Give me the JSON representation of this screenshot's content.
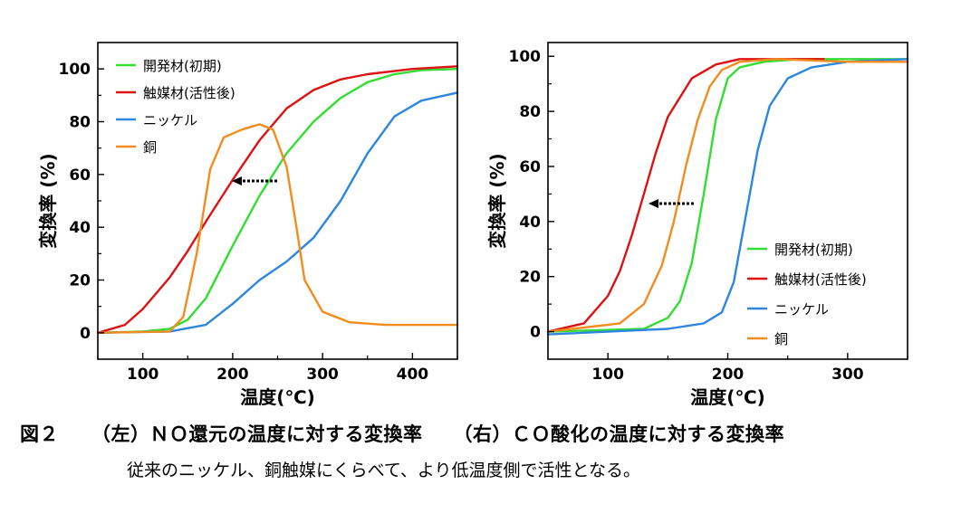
{
  "colors": {
    "kaihatsu": "#33dd33",
    "shokubai": "#dd1111",
    "nickel": "#2e86de",
    "copper": "#f28c1e",
    "axis": "#000000"
  },
  "caption": {
    "figure_number": "図２",
    "left_title": "（左）ＮＯ還元の温度に対する変換率",
    "right_title": "（右）ＣＯ酸化の温度に対する変換率",
    "body": "従来のニッケル、銅触媒にくらべて、より低温度側で活性となる。"
  },
  "chart_data": [
    {
      "type": "line",
      "xlabel": "温度(℃)",
      "ylabel": "変換率 (%)",
      "xlim": [
        50,
        450
      ],
      "ylim": [
        -10,
        110
      ],
      "xticks": [
        100,
        200,
        300,
        400
      ],
      "yticks": [
        0,
        20,
        40,
        60,
        80,
        100
      ],
      "legend_position": "top-left",
      "annotation": "arrow pointing left",
      "series": [
        {
          "name": "開発材(初期)",
          "color_key": "kaihatsu",
          "x": [
            50,
            100,
            130,
            150,
            170,
            200,
            230,
            260,
            290,
            320,
            350,
            380,
            410,
            450
          ],
          "y": [
            0,
            0.5,
            1.5,
            5,
            13,
            33,
            52,
            68,
            80,
            89,
            95,
            98,
            99.5,
            100
          ]
        },
        {
          "name": "触媒材(活性後)",
          "color_key": "shokubai",
          "x": [
            50,
            80,
            100,
            130,
            150,
            170,
            200,
            230,
            260,
            290,
            320,
            350,
            400,
            450
          ],
          "y": [
            0,
            3,
            9,
            21,
            31,
            42,
            58,
            73,
            85,
            92,
            96,
            98,
            100,
            101
          ]
        },
        {
          "name": "ニッケル",
          "color_key": "nickel",
          "x": [
            50,
            130,
            170,
            200,
            230,
            260,
            290,
            320,
            350,
            380,
            410,
            450
          ],
          "y": [
            0,
            0.5,
            3,
            11,
            20,
            27,
            36,
            50,
            68,
            82,
            88,
            91
          ]
        },
        {
          "name": "銅",
          "color_key": "copper",
          "x": [
            50,
            130,
            145,
            160,
            175,
            190,
            210,
            230,
            245,
            260,
            270,
            280,
            300,
            330,
            370,
            450
          ],
          "y": [
            0,
            0.5,
            6,
            30,
            62,
            74,
            77,
            79,
            77,
            63,
            42,
            20,
            8,
            4,
            3,
            3
          ]
        }
      ]
    },
    {
      "type": "line",
      "xlabel": "温度(℃)",
      "ylabel": "変換率 (%)",
      "xlim": [
        50,
        350
      ],
      "ylim": [
        -10,
        105
      ],
      "xticks": [
        100,
        200,
        300
      ],
      "yticks": [
        0,
        20,
        40,
        60,
        80,
        100
      ],
      "legend_position": "bottom-right",
      "annotation": "arrow pointing left",
      "series": [
        {
          "name": "開発材(初期)",
          "color_key": "kaihatsu",
          "x": [
            50,
            130,
            150,
            160,
            170,
            180,
            190,
            200,
            210,
            230,
            260,
            300,
            350
          ],
          "y": [
            0,
            1,
            5,
            11,
            25,
            50,
            77,
            92,
            96,
            98,
            99,
            99,
            99
          ]
        },
        {
          "name": "触媒材(活性後)",
          "color_key": "shokubai",
          "x": [
            50,
            80,
            100,
            110,
            120,
            130,
            140,
            150,
            170,
            190,
            210,
            250,
            280
          ],
          "y": [
            0,
            3,
            13,
            22,
            35,
            50,
            65,
            78,
            92,
            97,
            99,
            99,
            99
          ]
        },
        {
          "name": "ニッケル",
          "color_key": "nickel",
          "x": [
            50,
            150,
            180,
            195,
            205,
            215,
            225,
            235,
            250,
            270,
            300,
            350
          ],
          "y": [
            -1,
            1,
            3,
            7,
            18,
            42,
            66,
            82,
            92,
            96,
            98,
            99
          ]
        },
        {
          "name": "銅",
          "color_key": "copper",
          "x": [
            50,
            110,
            130,
            145,
            155,
            165,
            175,
            185,
            195,
            210,
            240,
            300,
            350
          ],
          "y": [
            0,
            3,
            10,
            24,
            40,
            60,
            77,
            89,
            95,
            98,
            99,
            98,
            98
          ]
        }
      ]
    }
  ]
}
